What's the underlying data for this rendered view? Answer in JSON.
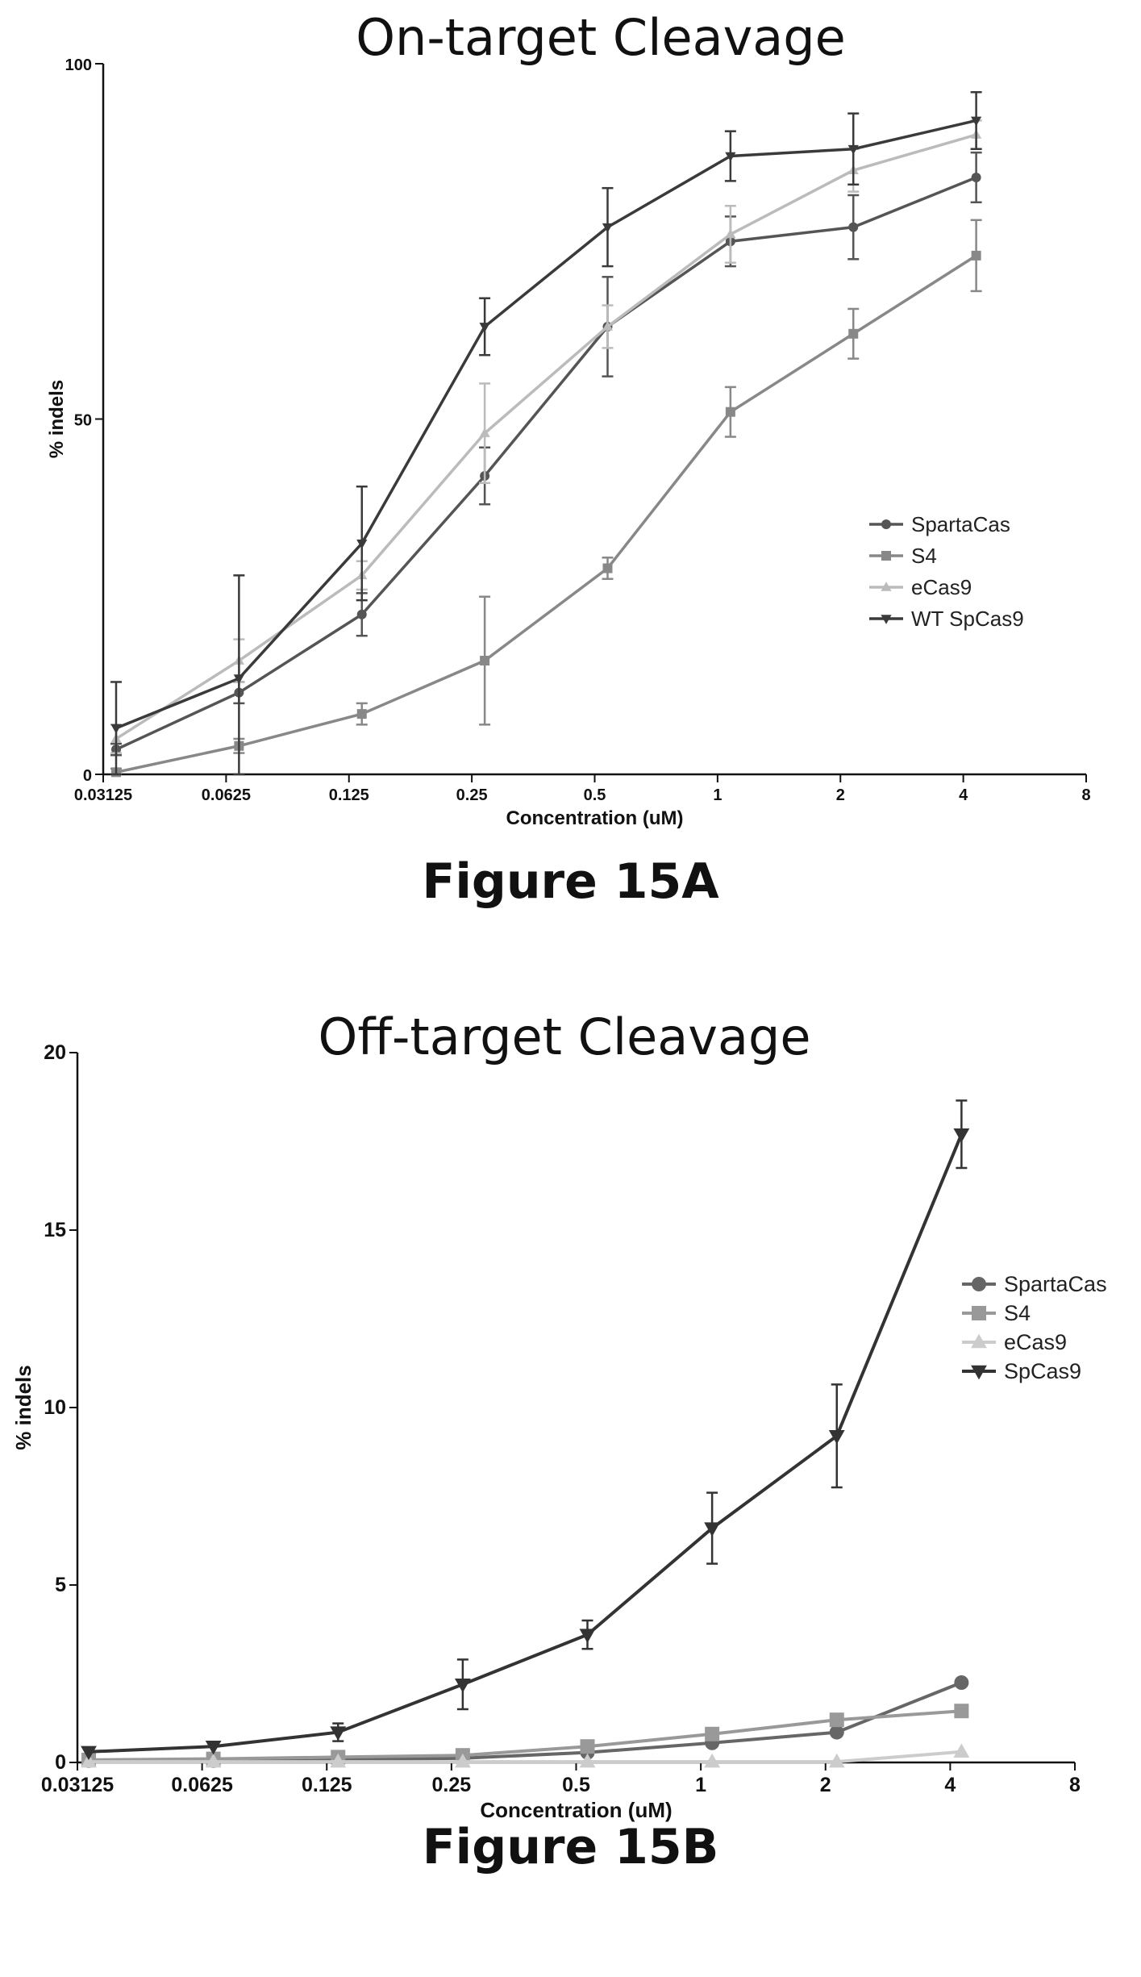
{
  "chart_data": [
    {
      "type": "line",
      "title": "On-target Cleavage",
      "xlabel": "Concentration (uM)",
      "ylabel": "% indels",
      "x_scale": "log2",
      "x_ticks": [
        "0.03125",
        "0.0625",
        "0.125",
        "0.25",
        "0.5",
        "1",
        "2",
        "4",
        "8"
      ],
      "xlim": [
        0.03125,
        8
      ],
      "y_ticks": [
        "0",
        "50",
        "100"
      ],
      "ylim": [
        0,
        100
      ],
      "grid": false,
      "legend_position": "right",
      "x": [
        0.03125,
        0.0625,
        0.125,
        0.25,
        0.5,
        1,
        2,
        4
      ],
      "series": [
        {
          "name": "SpartaCas",
          "color": "#555555",
          "marker": "circle",
          "values": [
            3.5,
            11.5,
            22.5,
            42,
            63,
            75,
            77,
            84
          ],
          "errors": [
            0.8,
            1.5,
            3,
            4,
            7,
            3.5,
            4.5,
            3.5
          ]
        },
        {
          "name": "S4",
          "color": "#888888",
          "marker": "square",
          "values": [
            0.3,
            4,
            8.5,
            16,
            29,
            51,
            62,
            73
          ],
          "errors": [
            0.5,
            1,
            1.5,
            9,
            1.5,
            3.5,
            3.5,
            5
          ]
        },
        {
          "name": "eCas9",
          "color": "#bbbbbb",
          "marker": "triangle-up",
          "values": [
            5,
            16,
            28,
            48,
            63,
            76,
            85,
            90
          ],
          "errors": [
            2,
            3,
            2,
            7,
            3,
            4,
            3,
            2
          ]
        },
        {
          "name": "WT SpCas9",
          "color": "#3a3a3a",
          "marker": "triangle-down",
          "values": [
            6.5,
            13.5,
            32.5,
            63,
            77,
            87,
            88,
            92
          ],
          "errors": [
            6.5,
            14.5,
            8,
            4,
            5.5,
            3.5,
            5,
            4
          ]
        }
      ]
    },
    {
      "type": "line",
      "title": "Off-target Cleavage",
      "xlabel": "Concentration (uM)",
      "ylabel": "% indels",
      "x_scale": "log2",
      "x_ticks": [
        "0.03125",
        "0.0625",
        "0.125",
        "0.25",
        "0.5",
        "1",
        "2",
        "4",
        "8"
      ],
      "xlim": [
        0.03125,
        8
      ],
      "y_ticks": [
        "0",
        "5",
        "10",
        "15",
        "20"
      ],
      "ylim": [
        0,
        20
      ],
      "grid": false,
      "legend_position": "right",
      "x": [
        0.03125,
        0.0625,
        0.125,
        0.25,
        0.5,
        1,
        2,
        4
      ],
      "series": [
        {
          "name": "SpartaCas",
          "color": "#666666",
          "marker": "circle",
          "values": [
            0.05,
            0.05,
            0.08,
            0.12,
            0.28,
            0.55,
            0.85,
            2.25
          ],
          "errors": [
            0,
            0,
            0,
            0,
            0,
            0,
            0,
            0
          ]
        },
        {
          "name": "S4",
          "color": "#999999",
          "marker": "square",
          "values": [
            0.07,
            0.1,
            0.15,
            0.2,
            0.45,
            0.8,
            1.2,
            1.45
          ],
          "errors": [
            0,
            0,
            0,
            0,
            0,
            0,
            0,
            0
          ]
        },
        {
          "name": "eCas9",
          "color": "#cccccc",
          "marker": "triangle-up",
          "values": [
            0.02,
            0.02,
            0.02,
            0.02,
            0.02,
            0.02,
            0.02,
            0.3
          ],
          "errors": [
            0,
            0,
            0,
            0,
            0,
            0,
            0,
            0
          ]
        },
        {
          "name": "SpCas9",
          "color": "#333333",
          "marker": "triangle-down",
          "values": [
            0.3,
            0.45,
            0.85,
            2.2,
            3.6,
            6.6,
            9.2,
            17.7
          ],
          "errors": [
            0,
            0,
            0.25,
            0.7,
            0.4,
            1,
            1.45,
            0.95
          ]
        }
      ]
    }
  ],
  "captions": {
    "figA": "Figure 15A",
    "figB": "Figure 15B"
  }
}
